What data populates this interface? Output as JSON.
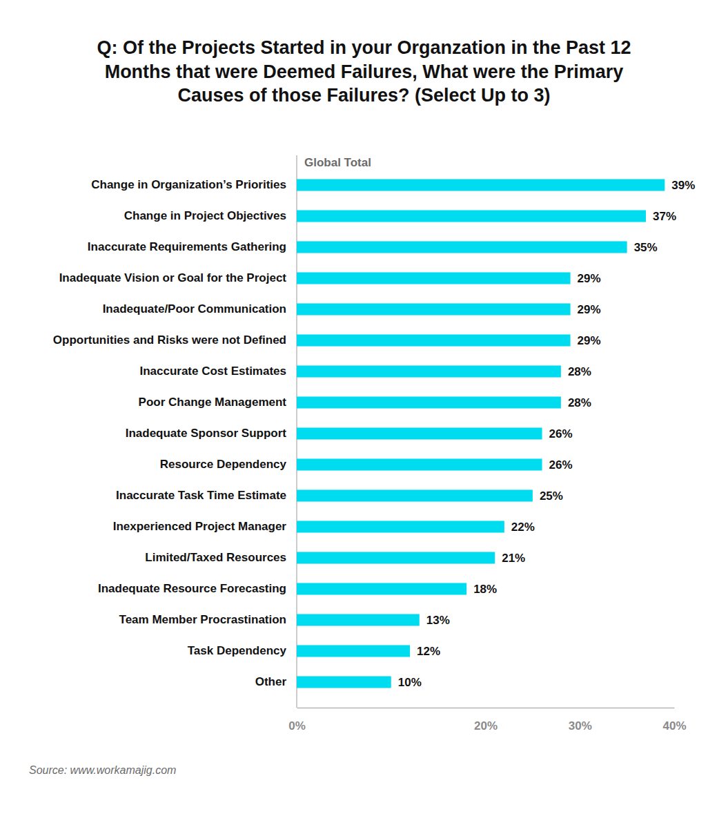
{
  "chart_data": {
    "type": "bar",
    "orientation": "horizontal",
    "title": [
      "Q: Of the Projects Started in your Organzation in the Past 12",
      "Months that were Deemed Failures, What were the Primary",
      "Causes of those Failures? (Select Up to 3)"
    ],
    "categories": [
      "Change in Organization’s Priorities",
      "Change in Project Objectives",
      "Inaccurate Requirements Gathering",
      "Inadequate Vision or Goal for the Project",
      "Inadequate/Poor Communication",
      "Opportunities and Risks were not Defined",
      "Inaccurate Cost Estimates",
      "Poor Change Management",
      "Inadequate Sponsor Support",
      "Resource Dependency",
      "Inaccurate Task Time Estimate",
      "Inexperienced Project Manager",
      "Limited/Taxed Resources",
      "Inadequate Resource Forecasting",
      "Team Member Procrastination",
      "Task Dependency",
      "Other"
    ],
    "series": [
      {
        "name": "Global Total",
        "color": "#00dcef",
        "values": [
          39,
          37,
          35,
          29,
          29,
          29,
          28,
          28,
          26,
          26,
          25,
          22,
          21,
          18,
          13,
          12,
          10
        ],
        "value_labels": [
          "39%",
          "37%",
          "35%",
          "29%",
          "29%",
          "29%",
          "28%",
          "28%",
          "26%",
          "26%",
          "25%",
          "22%",
          "21%",
          "18%",
          "13%",
          "12%",
          "10%"
        ]
      }
    ],
    "xlim": [
      0,
      40
    ],
    "xticks": [
      {
        "value": 0,
        "label": "0%"
      },
      {
        "value": 20,
        "label": "20%"
      },
      {
        "value": 30,
        "label": "30%"
      },
      {
        "value": 40,
        "label": "40%"
      }
    ],
    "grid": false,
    "data_labels": true,
    "legend": "top-left",
    "source": "Source: www.workamajig.com"
  }
}
